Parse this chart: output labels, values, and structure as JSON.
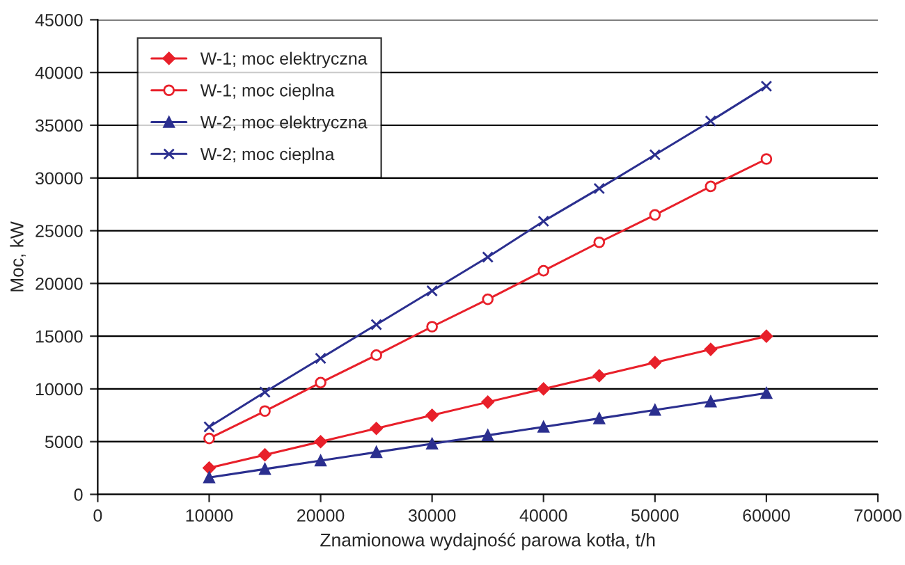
{
  "chart_data": {
    "type": "line",
    "xlabel": "Znamionowa wydajność parowa kotła, t/h",
    "ylabel": "Moc, kW",
    "x": [
      10000,
      15000,
      20000,
      25000,
      30000,
      35000,
      40000,
      45000,
      50000,
      55000,
      60000
    ],
    "series": [
      {
        "name": "W-1; moc elektryczna",
        "color": "#e8202a",
        "marker": "diamond",
        "values": [
          2500,
          3750,
          5000,
          6250,
          7500,
          8750,
          10000,
          11250,
          12500,
          13750,
          15000
        ]
      },
      {
        "name": "W-1; moc cieplna",
        "color": "#e8202a",
        "marker": "circle",
        "values": [
          5300,
          7900,
          10600,
          13200,
          15900,
          18500,
          21200,
          23900,
          26500,
          29200,
          31800
        ]
      },
      {
        "name": "W-2; moc elektryczna",
        "color": "#2b2f8f",
        "marker": "triangle",
        "values": [
          1600,
          2400,
          3200,
          4000,
          4800,
          5600,
          6400,
          7200,
          8000,
          8800,
          9600
        ]
      },
      {
        "name": "W-2; moc cieplna",
        "color": "#2b2f8f",
        "marker": "cross",
        "values": [
          6400,
          9700,
          12900,
          16100,
          19300,
          22500,
          25900,
          29000,
          32200,
          35400,
          38700
        ]
      }
    ],
    "xlim": [
      0,
      70000
    ],
    "xticks": [
      0,
      10000,
      20000,
      30000,
      40000,
      50000,
      60000,
      70000
    ],
    "ylim": [
      0,
      45000
    ],
    "yticks": [
      0,
      5000,
      10000,
      15000,
      20000,
      25000,
      30000,
      35000,
      40000,
      45000
    ],
    "grid": "y",
    "legend": "top left",
    "line_style": "solid"
  }
}
